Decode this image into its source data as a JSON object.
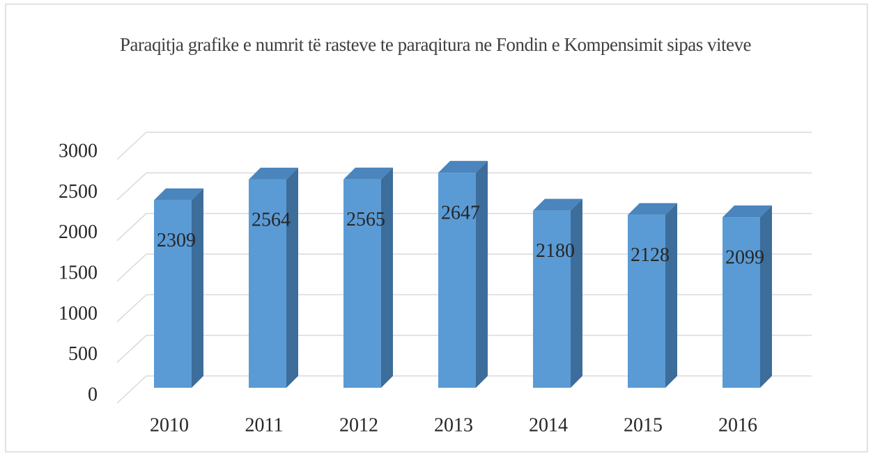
{
  "chart_data": {
    "type": "bar",
    "title": "Paraqitja grafike e numrit të rasteve te paraqitura ne Fondin e Kompensimit sipas viteve",
    "categories": [
      "2010",
      "2011",
      "2012",
      "2013",
      "2014",
      "2015",
      "2016"
    ],
    "values": [
      2309,
      2564,
      2565,
      2647,
      2180,
      2128,
      2099
    ],
    "color": "#5b9bd5",
    "ylim": [
      0,
      3000
    ],
    "yticks": [
      0,
      500,
      1000,
      1500,
      2000,
      2500,
      3000
    ],
    "grid": true
  }
}
